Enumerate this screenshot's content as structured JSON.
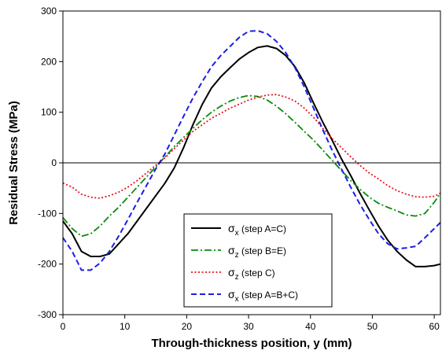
{
  "chart_data": {
    "type": "line",
    "title": "",
    "xlabel": "Through-thickness position, y (mm)",
    "ylabel": "Residual Stress (MPa)",
    "xlim": [
      0,
      61
    ],
    "ylim": [
      -300,
      300
    ],
    "xticks": [
      "0",
      "10",
      "20",
      "30",
      "40",
      "50",
      "60"
    ],
    "yticks": [
      "-300",
      "-200",
      "-100",
      "0",
      "100",
      "200",
      "300"
    ],
    "grid": false,
    "zero_line": true,
    "legend_position": "lower-center",
    "series": [
      {
        "name": "σx (step A=C)",
        "symbol": "σ",
        "sub": "x",
        "label": " (step A=C)",
        "color": "#000000",
        "dash": "solid",
        "x": [
          0,
          1.5,
          3,
          4.5,
          6,
          7.5,
          9,
          10.5,
          12,
          13.5,
          15,
          16.5,
          18,
          19.5,
          21,
          22.5,
          24,
          25.5,
          27,
          28.5,
          30,
          31.5,
          33,
          34.5,
          36,
          37.5,
          39,
          40.5,
          42,
          43.5,
          45,
          46.5,
          48,
          49.5,
          51,
          52.5,
          54,
          55.5,
          57,
          58.5,
          60,
          61
        ],
        "y": [
          -115,
          -140,
          -175,
          -185,
          -185,
          -180,
          -160,
          -140,
          -115,
          -90,
          -65,
          -40,
          -10,
          30,
          75,
          115,
          148,
          170,
          188,
          205,
          218,
          228,
          231,
          226,
          212,
          190,
          158,
          118,
          80,
          45,
          8,
          -25,
          -60,
          -93,
          -125,
          -153,
          -175,
          -192,
          -205,
          -205,
          -203,
          -200
        ]
      },
      {
        "name": "σz (step B=E)",
        "symbol": "σ",
        "sub": "z",
        "label": " (step B=E)",
        "color": "#0a8a0a",
        "dash": "dashdot",
        "x": [
          0,
          1.5,
          3,
          4.5,
          6,
          7.5,
          9,
          10.5,
          12,
          13.5,
          15,
          16.5,
          18,
          19.5,
          21,
          22.5,
          24,
          25.5,
          27,
          28.5,
          30,
          31.5,
          33,
          34.5,
          36,
          37.5,
          39,
          40.5,
          42,
          43.5,
          45,
          46.5,
          48,
          49.5,
          51,
          52.5,
          54,
          55.5,
          57,
          58.5,
          60,
          61
        ],
        "y": [
          -108,
          -130,
          -145,
          -140,
          -125,
          -105,
          -88,
          -68,
          -48,
          -28,
          -8,
          12,
          32,
          50,
          68,
          85,
          100,
          112,
          122,
          129,
          133,
          131,
          124,
          112,
          97,
          80,
          62,
          45,
          25,
          5,
          -15,
          -35,
          -52,
          -68,
          -80,
          -88,
          -95,
          -103,
          -105,
          -100,
          -78,
          -60
        ]
      },
      {
        "name": "σz (step C)",
        "symbol": "σ",
        "sub": "z",
        "label": " (step C)",
        "color": "#e8141e",
        "dash": "dotted",
        "x": [
          0,
          1.5,
          3,
          4.5,
          6,
          7.5,
          9,
          10.5,
          12,
          13.5,
          15,
          16.5,
          18,
          19.5,
          21,
          22.5,
          24,
          25.5,
          27,
          28.5,
          30,
          31.5,
          33,
          34.5,
          36,
          37.5,
          39,
          40.5,
          42,
          43.5,
          45,
          46.5,
          48,
          49.5,
          51,
          52.5,
          54,
          55.5,
          57,
          58.5,
          60,
          61
        ],
        "y": [
          -40,
          -48,
          -62,
          -68,
          -70,
          -65,
          -58,
          -48,
          -35,
          -20,
          -5,
          10,
          28,
          45,
          62,
          75,
          88,
          98,
          108,
          116,
          124,
          130,
          134,
          135,
          130,
          122,
          108,
          90,
          68,
          48,
          30,
          12,
          -5,
          -20,
          -32,
          -45,
          -55,
          -62,
          -67,
          -68,
          -66,
          -60
        ]
      },
      {
        "name": "σx (step A=B+C)",
        "symbol": "σ",
        "sub": "x",
        "label": " (step A=B+C)",
        "color": "#1d1de8",
        "dash": "dashed",
        "x": [
          0,
          1.5,
          3,
          4.5,
          6,
          7.5,
          9,
          10.5,
          12,
          13.5,
          15,
          16.5,
          18,
          19.5,
          21,
          22.5,
          24,
          25.5,
          27,
          28.5,
          30,
          31.5,
          33,
          34.5,
          36,
          37.5,
          39,
          40.5,
          42,
          43.5,
          45,
          46.5,
          48,
          49.5,
          51,
          52.5,
          54,
          55.5,
          57,
          58.5,
          60,
          61
        ],
        "y": [
          -148,
          -175,
          -212,
          -212,
          -198,
          -175,
          -145,
          -112,
          -78,
          -45,
          -12,
          18,
          55,
          92,
          128,
          160,
          190,
          212,
          230,
          248,
          260,
          261,
          255,
          240,
          218,
          188,
          150,
          108,
          65,
          25,
          -12,
          -48,
          -82,
          -112,
          -140,
          -160,
          -170,
          -168,
          -165,
          -148,
          -130,
          -118
        ]
      }
    ]
  }
}
